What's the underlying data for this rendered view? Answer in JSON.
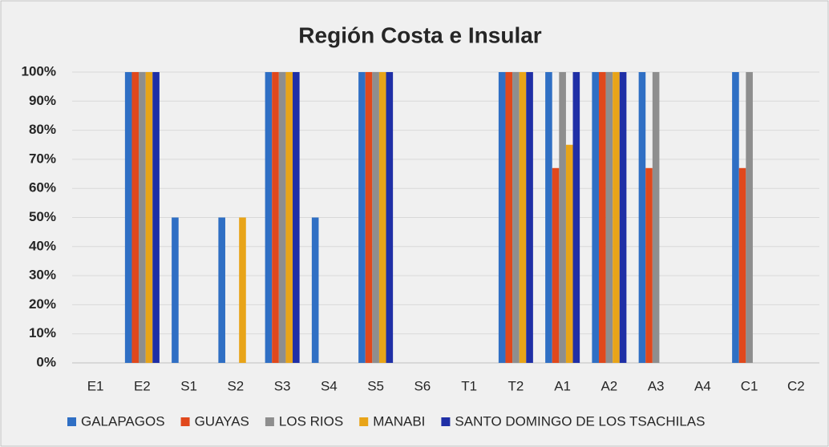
{
  "chart_data": {
    "type": "bar",
    "title": "Región Costa e Insular",
    "categories": [
      "E1",
      "E2",
      "S1",
      "S2",
      "S3",
      "S4",
      "S5",
      "S6",
      "T1",
      "T2",
      "A1",
      "A2",
      "A3",
      "A4",
      "C1",
      "C2"
    ],
    "series": [
      {
        "name": "GALAPAGOS",
        "color": "#2f6fc4",
        "values": [
          0,
          100,
          50,
          50,
          100,
          50,
          100,
          0,
          0,
          100,
          100,
          100,
          100,
          0,
          100,
          0
        ]
      },
      {
        "name": "GUAYAS",
        "color": "#e0481c",
        "values": [
          0,
          100,
          0,
          0,
          100,
          0,
          100,
          0,
          0,
          100,
          67,
          100,
          67,
          0,
          67,
          0
        ]
      },
      {
        "name": "LOS RIOS",
        "color": "#8e8e8e",
        "values": [
          0,
          100,
          0,
          0,
          100,
          0,
          100,
          0,
          0,
          100,
          100,
          100,
          100,
          0,
          100,
          0
        ]
      },
      {
        "name": "MANABI",
        "color": "#e8a418",
        "values": [
          0,
          100,
          0,
          50,
          100,
          0,
          100,
          0,
          0,
          100,
          75,
          100,
          0,
          0,
          0,
          0
        ]
      },
      {
        "name": "SANTO DOMINGO DE LOS TSACHILAS",
        "color": "#1f2fa6",
        "values": [
          0,
          100,
          0,
          0,
          100,
          0,
          100,
          0,
          0,
          100,
          100,
          100,
          0,
          0,
          0,
          0
        ]
      }
    ],
    "ylim": [
      0,
      100
    ],
    "yticks": [
      {
        "value": 0,
        "label": "0%"
      },
      {
        "value": 10,
        "label": "10%"
      },
      {
        "value": 20,
        "label": "20%"
      },
      {
        "value": 30,
        "label": "30%"
      },
      {
        "value": 40,
        "label": "40%"
      },
      {
        "value": 50,
        "label": "50%"
      },
      {
        "value": 60,
        "label": "60%"
      },
      {
        "value": 70,
        "label": "70%"
      },
      {
        "value": 80,
        "label": "80%"
      },
      {
        "value": 90,
        "label": "90%"
      },
      {
        "value": 100,
        "label": "100%"
      }
    ],
    "grid": true,
    "legend": "bottom"
  }
}
